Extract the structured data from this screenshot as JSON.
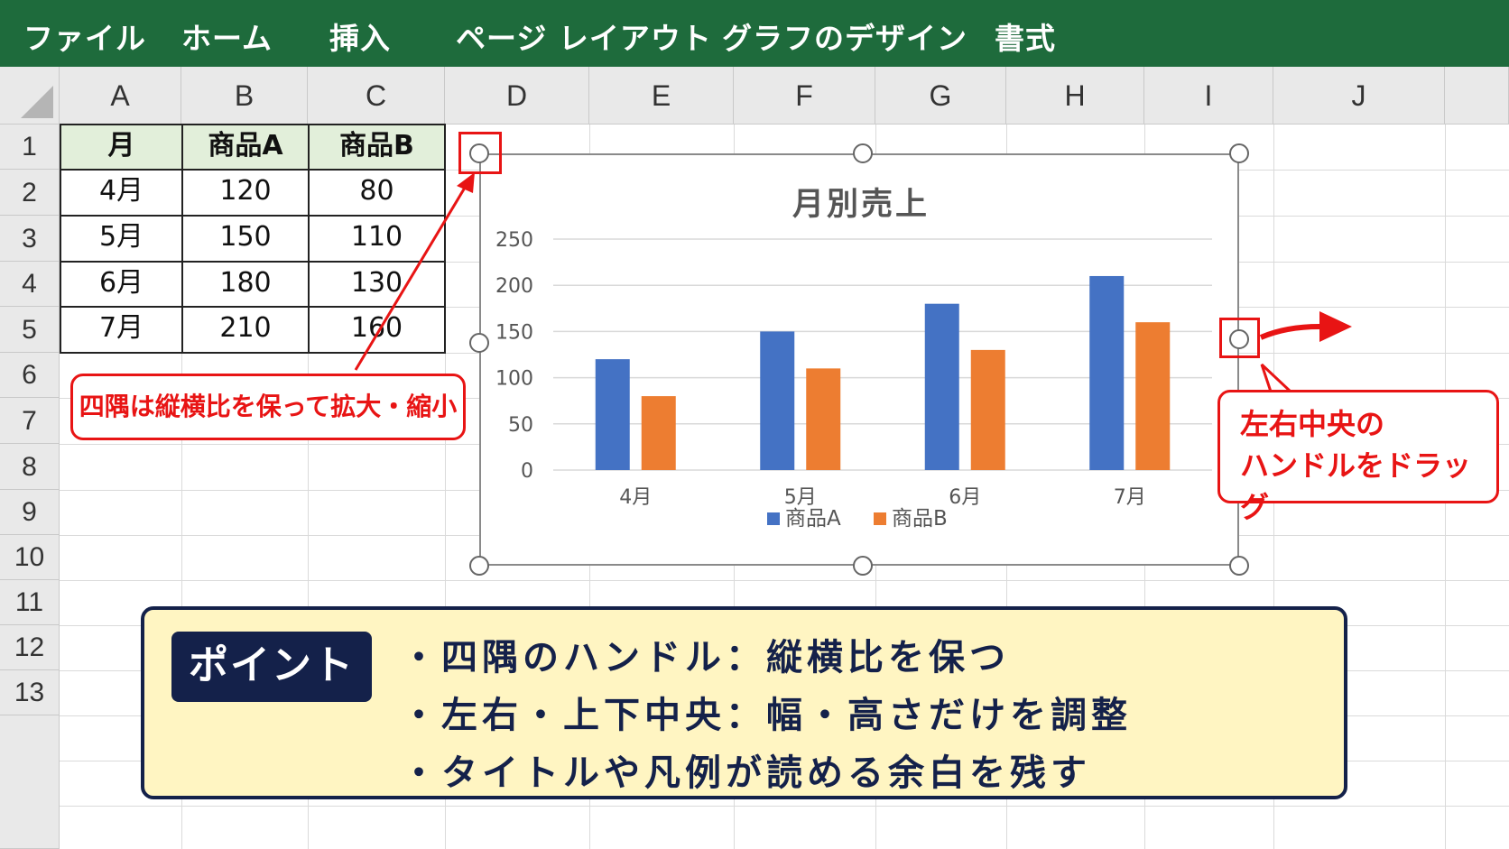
{
  "ribbon": {
    "tabs": [
      {
        "label": "ファイル"
      },
      {
        "label": "ホーム"
      },
      {
        "label": "挿入"
      },
      {
        "label": "ページ レイアウト"
      },
      {
        "label": "グラフのデザイン"
      },
      {
        "label": "書式"
      }
    ]
  },
  "sheet": {
    "columns": [
      "A",
      "B",
      "C",
      "D",
      "E",
      "F",
      "G",
      "H",
      "I",
      "J"
    ],
    "rows": [
      "1",
      "2",
      "3",
      "4",
      "5",
      "6",
      "7",
      "8",
      "9",
      "10",
      "11",
      "12",
      "13"
    ],
    "table": {
      "header": [
        "月",
        "商品A",
        "商品B"
      ],
      "rows": [
        [
          "4月",
          "120",
          "80"
        ],
        [
          "5月",
          "150",
          "110"
        ],
        [
          "6月",
          "180",
          "130"
        ],
        [
          "7月",
          "210",
          "160"
        ]
      ]
    }
  },
  "chart_data": {
    "type": "bar",
    "title": "月別売上",
    "categories": [
      "4月",
      "5月",
      "6月",
      "7月"
    ],
    "series": [
      {
        "name": "商品A",
        "values": [
          120,
          150,
          180,
          210
        ],
        "color": "#4472c4"
      },
      {
        "name": "商品B",
        "values": [
          80,
          110,
          130,
          160
        ],
        "color": "#ed7d31"
      }
    ],
    "ylim": [
      0,
      250
    ],
    "yticks": [
      "0",
      "50",
      "100",
      "150",
      "200",
      "250"
    ],
    "grid": true,
    "legend": "bottom"
  },
  "annotations": {
    "corner_note": "四隅は縦横比を保って拡大・縮小",
    "side_note_line1": "左右中央の",
    "side_note_line2": "ハンドルをドラッグ",
    "accent_color": "#e81414"
  },
  "point": {
    "label": "ポイント",
    "items": [
      "・四隅のハンドル：縦横比を保つ",
      "・左右・上下中央：幅・高さだけを調整",
      "・タイトルや凡例が読める余白を残す"
    ]
  }
}
